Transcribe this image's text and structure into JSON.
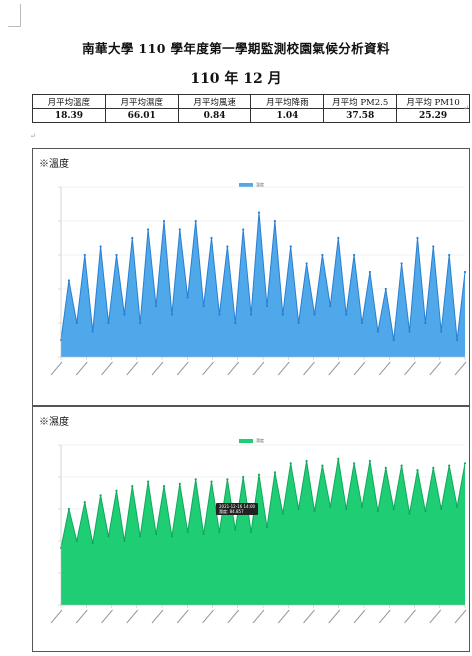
{
  "title": "南華大學 110 學年度第一學期監測校園氣候分析資料",
  "subtitle": "110 年 12 月",
  "table": {
    "headers": [
      "月平均溫度",
      "月平均濕度",
      "月平均風速",
      "月平均降雨",
      "月平均 PM2.5",
      "月平均 PM10"
    ],
    "values": [
      "18.39",
      "66.01",
      "0.84",
      "1.04",
      "37.58",
      "25.29"
    ]
  },
  "colors": {
    "temp": "#4fa8ea",
    "temp_line": "#2a7fd0",
    "hum": "#1fcd75",
    "hum_line": "#11a85c"
  },
  "chart_data": [
    {
      "type": "area",
      "title": "※溫度",
      "series": [
        {
          "name": "溫度",
          "values": [
            12,
            19,
            14,
            22,
            13,
            23,
            14,
            22,
            15,
            24,
            14,
            25,
            16,
            26,
            15,
            25,
            17,
            26,
            16,
            24,
            15,
            23,
            14,
            25,
            15,
            27,
            16,
            26,
            15,
            23,
            14,
            21,
            15,
            22,
            16,
            24,
            15,
            22,
            14,
            20,
            13,
            18,
            12,
            21,
            13,
            24,
            14,
            23,
            13,
            22,
            12,
            20
          ]
        }
      ],
      "ylim": [
        10,
        30
      ],
      "legend": "top-center",
      "grid": true
    },
    {
      "type": "area",
      "title": "※濕度",
      "series": [
        {
          "name": "濕度",
          "values": [
            55,
            72,
            58,
            75,
            57,
            78,
            60,
            80,
            58,
            82,
            60,
            84,
            61,
            82,
            60,
            83,
            62,
            85,
            61,
            84,
            62,
            85,
            63,
            86,
            62,
            87,
            64,
            88,
            70,
            92,
            72,
            93,
            71,
            91,
            73,
            94,
            72,
            92,
            73,
            93,
            71,
            90,
            72,
            91,
            70,
            89,
            71,
            90,
            72,
            91,
            73,
            92
          ]
        }
      ],
      "ylim": [
        30,
        100
      ],
      "legend": "top-center",
      "grid": true,
      "tooltip": [
        "2021-12-16 14:00",
        "濕度: 84.857"
      ]
    }
  ]
}
